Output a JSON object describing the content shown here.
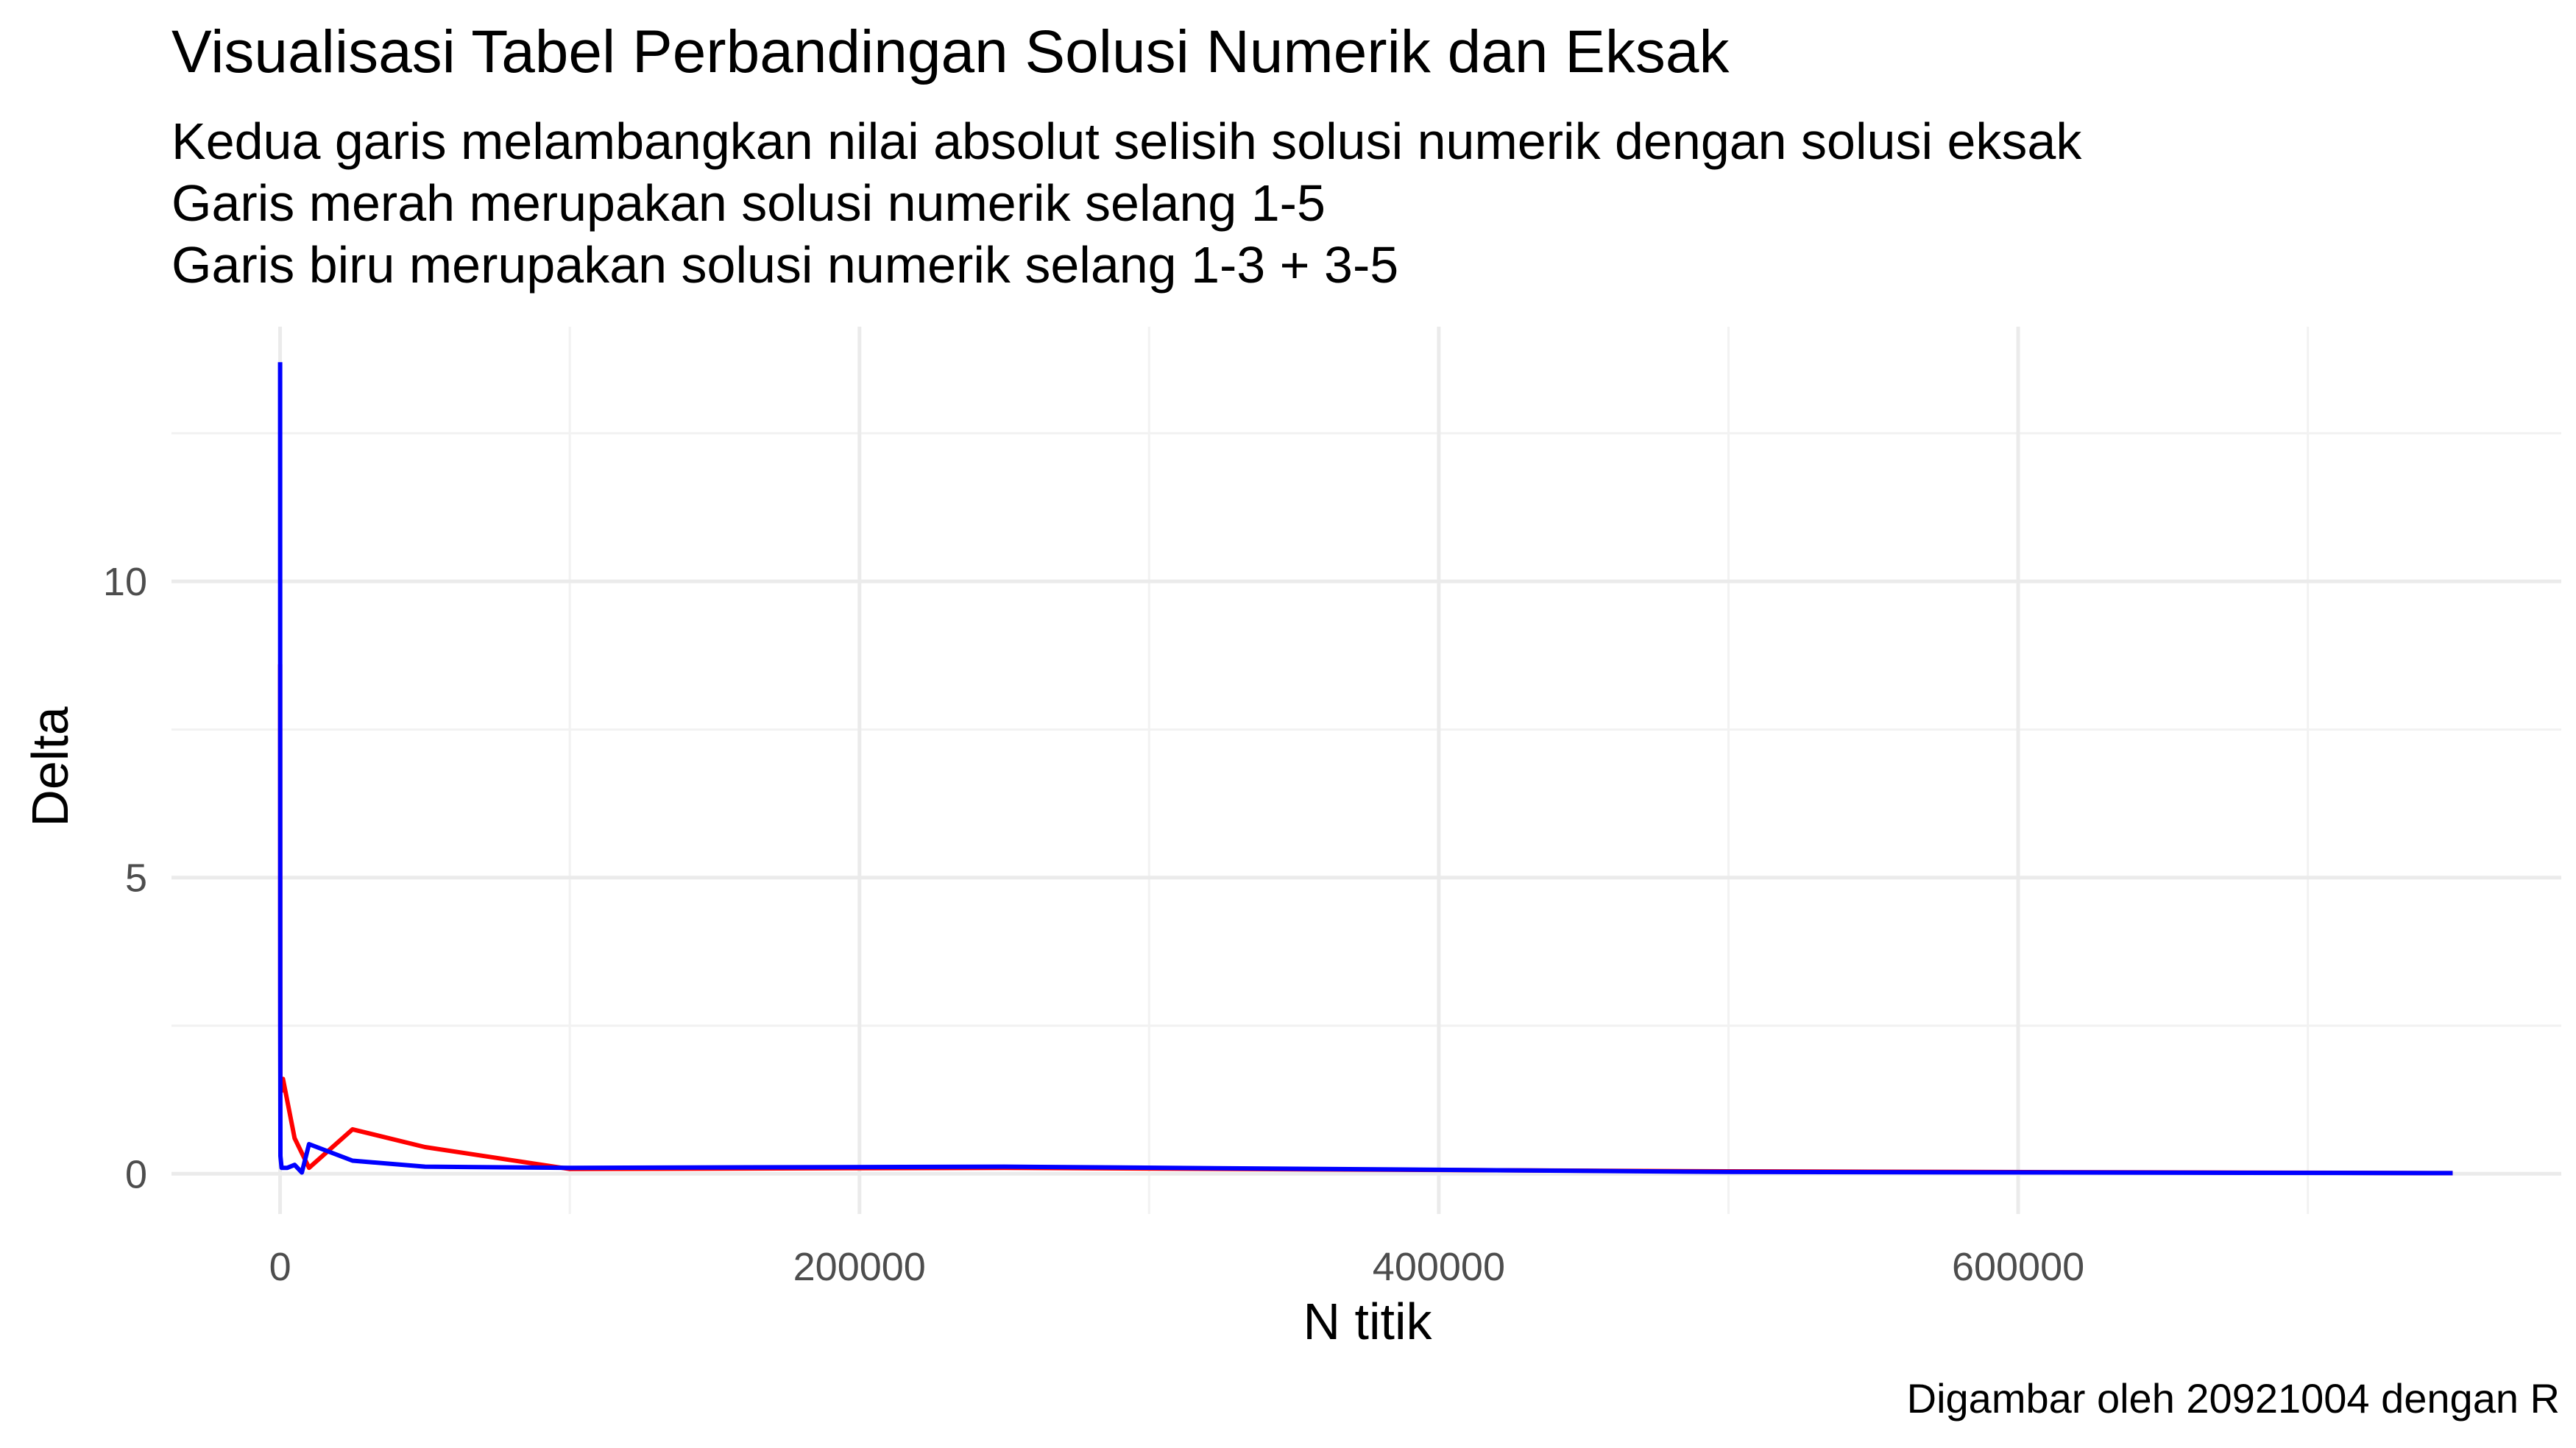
{
  "chart_data": {
    "type": "line",
    "title": "Visualisasi Tabel Perbandingan Solusi Numerik dan Eksak",
    "subtitle": [
      "Kedua garis melambangkan nilai absolut selisih solusi numerik dengan solusi eksak",
      "Garis merah merupakan solusi numerik selang 1-5",
      "Garis biru merupakan solusi numerik selang 1-3 + 3-5"
    ],
    "caption": "Digambar oleh 20921004 dengan R",
    "xlabel": "N titik",
    "ylabel": "Delta",
    "xlim": [
      -37500,
      787500
    ],
    "ylim": [
      -0.68,
      14.3
    ],
    "x_ticks": [
      0,
      200000,
      400000,
      600000
    ],
    "x_tick_labels": [
      "0",
      "200000",
      "400000",
      "600000"
    ],
    "y_ticks": [
      0,
      5,
      10
    ],
    "y_tick_labels": [
      "0",
      "5",
      "10"
    ],
    "grid": true,
    "series": [
      {
        "color": "#ff0000",
        "x": [
          10,
          50,
          100,
          500,
          1000,
          5000,
          10000,
          25000,
          50000,
          100000,
          250000,
          500000,
          750000
        ],
        "y": [
          8.6,
          3.2,
          1.6,
          1.4,
          1.6,
          0.6,
          0.1,
          0.75,
          0.45,
          0.08,
          0.1,
          0.04,
          0.01
        ]
      },
      {
        "color": "#0000ff",
        "x": [
          10,
          50,
          100,
          500,
          1000,
          2500,
          5000,
          7500,
          10000,
          25000,
          50000,
          100000,
          250000,
          500000,
          750000
        ],
        "y": [
          13.7,
          2.5,
          0.3,
          0.1,
          0.1,
          0.1,
          0.15,
          0.02,
          0.5,
          0.22,
          0.12,
          0.1,
          0.12,
          0.03,
          0.01
        ]
      }
    ]
  }
}
